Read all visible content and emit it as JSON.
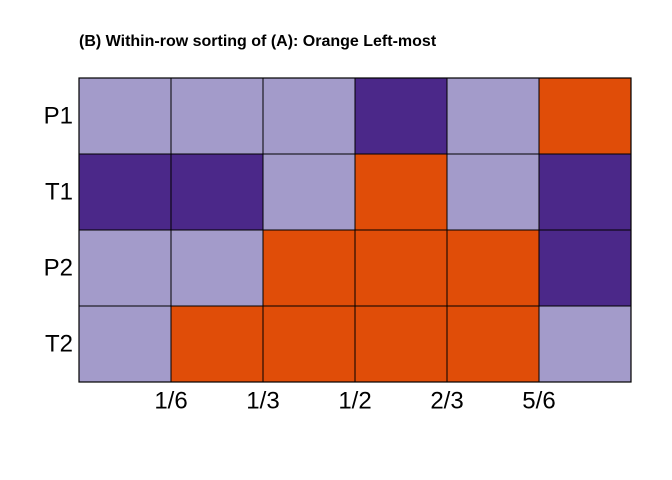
{
  "chart_data": {
    "type": "tile",
    "title": "(B)  Within-row sorting of (A): Orange Left-most",
    "rows": [
      {
        "name": "P1",
        "colors": [
          "#a39bca",
          "#a39bca",
          "#a39bca",
          "#4b2889",
          "#a39bca",
          "#e04d08"
        ]
      },
      {
        "name": "T1",
        "colors": [
          "#4b2889",
          "#4b2889",
          "#a39bca",
          "#e04d08",
          "#a39bca",
          "#4b2889"
        ]
      },
      {
        "name": "P2",
        "colors": [
          "#a39bca",
          "#a39bca",
          "#e04d08",
          "#e04d08",
          "#e04d08",
          "#4b2889"
        ]
      },
      {
        "name": "T2",
        "colors": [
          "#a39bca",
          "#e04d08",
          "#e04d08",
          "#e04d08",
          "#e04d08",
          "#a39bca"
        ]
      }
    ],
    "xlim": [
      0,
      1
    ],
    "xticks": [
      {
        "value": 0.16667,
        "label": "1/6"
      },
      {
        "value": 0.33333,
        "label": "1/3"
      },
      {
        "value": 0.5,
        "label": "1/2"
      },
      {
        "value": 0.66667,
        "label": "2/3"
      },
      {
        "value": 0.83333,
        "label": "5/6"
      }
    ]
  }
}
